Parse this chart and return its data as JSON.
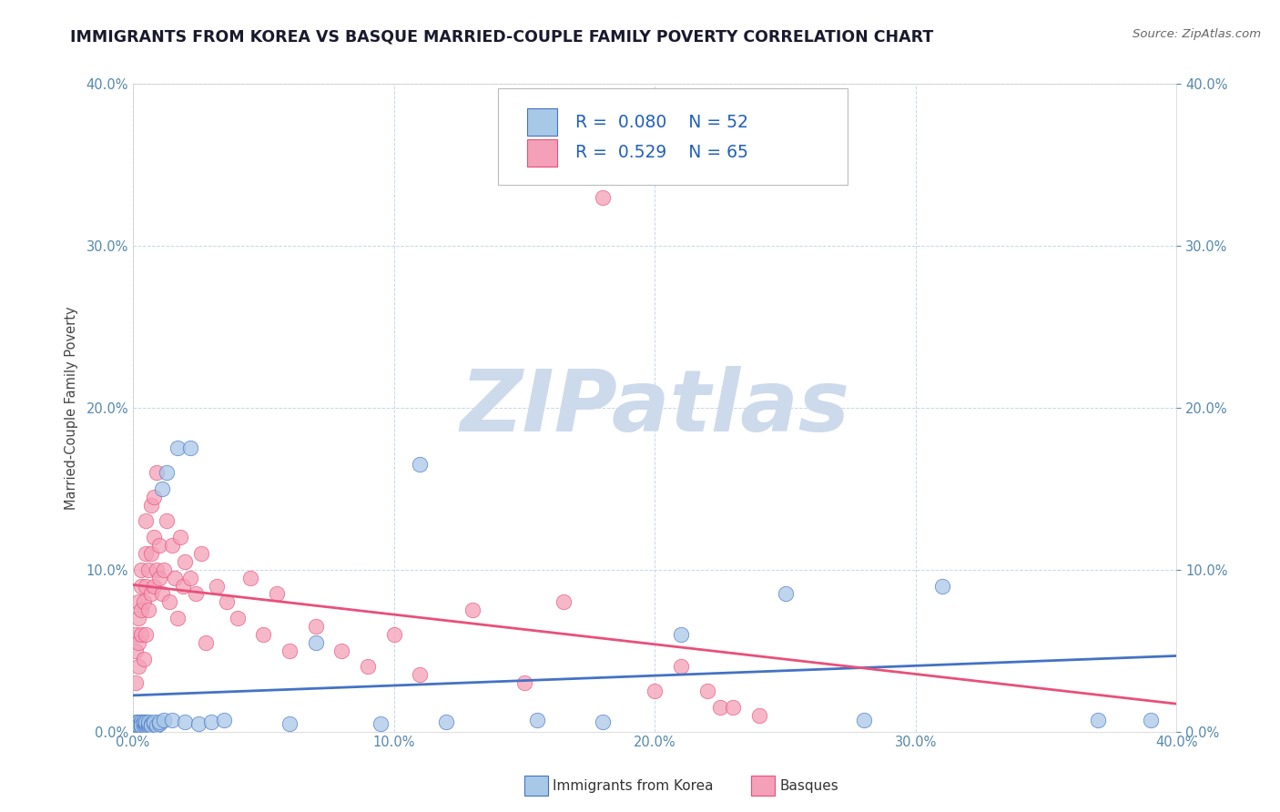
{
  "title": "IMMIGRANTS FROM KOREA VS BASQUE MARRIED-COUPLE FAMILY POVERTY CORRELATION CHART",
  "source": "Source: ZipAtlas.com",
  "ylabel": "Married-Couple Family Poverty",
  "legend_korea": "Immigrants from Korea",
  "legend_basque": "Basques",
  "r_korea": 0.08,
  "n_korea": 52,
  "r_basque": 0.529,
  "n_basque": 65,
  "color_korea": "#a8c8e8",
  "color_korea_line": "#4472c4",
  "color_basque": "#f4a0b8",
  "color_basque_line": "#e8507a",
  "watermark": "ZIPatlas",
  "watermark_color": "#ccdaeb",
  "korea_x": [
    0.001,
    0.001,
    0.001,
    0.001,
    0.002,
    0.002,
    0.002,
    0.002,
    0.002,
    0.003,
    0.003,
    0.003,
    0.003,
    0.004,
    0.004,
    0.004,
    0.005,
    0.005,
    0.005,
    0.006,
    0.006,
    0.006,
    0.007,
    0.007,
    0.008,
    0.008,
    0.009,
    0.01,
    0.01,
    0.011,
    0.012,
    0.013,
    0.015,
    0.017,
    0.02,
    0.022,
    0.025,
    0.03,
    0.035,
    0.06,
    0.07,
    0.095,
    0.11,
    0.12,
    0.155,
    0.18,
    0.21,
    0.25,
    0.28,
    0.31,
    0.37,
    0.39
  ],
  "korea_y": [
    0.004,
    0.005,
    0.003,
    0.006,
    0.004,
    0.005,
    0.003,
    0.006,
    0.004,
    0.005,
    0.003,
    0.006,
    0.004,
    0.005,
    0.004,
    0.006,
    0.004,
    0.005,
    0.006,
    0.004,
    0.005,
    0.006,
    0.005,
    0.004,
    0.005,
    0.006,
    0.004,
    0.005,
    0.006,
    0.15,
    0.007,
    0.16,
    0.007,
    0.175,
    0.006,
    0.175,
    0.005,
    0.006,
    0.007,
    0.005,
    0.055,
    0.005,
    0.165,
    0.006,
    0.007,
    0.006,
    0.06,
    0.085,
    0.007,
    0.09,
    0.007,
    0.007
  ],
  "basque_x": [
    0.001,
    0.001,
    0.001,
    0.002,
    0.002,
    0.002,
    0.002,
    0.003,
    0.003,
    0.003,
    0.003,
    0.004,
    0.004,
    0.005,
    0.005,
    0.005,
    0.005,
    0.006,
    0.006,
    0.007,
    0.007,
    0.007,
    0.008,
    0.008,
    0.008,
    0.009,
    0.009,
    0.01,
    0.01,
    0.011,
    0.012,
    0.013,
    0.014,
    0.015,
    0.016,
    0.017,
    0.018,
    0.019,
    0.02,
    0.022,
    0.024,
    0.026,
    0.028,
    0.032,
    0.036,
    0.04,
    0.045,
    0.05,
    0.055,
    0.06,
    0.07,
    0.08,
    0.09,
    0.1,
    0.11,
    0.13,
    0.15,
    0.165,
    0.18,
    0.2,
    0.21,
    0.22,
    0.225,
    0.23,
    0.24
  ],
  "basque_y": [
    0.03,
    0.05,
    0.06,
    0.04,
    0.055,
    0.07,
    0.08,
    0.06,
    0.075,
    0.09,
    0.1,
    0.045,
    0.08,
    0.06,
    0.09,
    0.11,
    0.13,
    0.075,
    0.1,
    0.085,
    0.11,
    0.14,
    0.09,
    0.12,
    0.145,
    0.1,
    0.16,
    0.095,
    0.115,
    0.085,
    0.1,
    0.13,
    0.08,
    0.115,
    0.095,
    0.07,
    0.12,
    0.09,
    0.105,
    0.095,
    0.085,
    0.11,
    0.055,
    0.09,
    0.08,
    0.07,
    0.095,
    0.06,
    0.085,
    0.05,
    0.065,
    0.05,
    0.04,
    0.06,
    0.035,
    0.075,
    0.03,
    0.08,
    0.33,
    0.025,
    0.04,
    0.025,
    0.015,
    0.015,
    0.01
  ],
  "xlim": [
    0.0,
    0.4
  ],
  "ylim": [
    0.0,
    0.4
  ],
  "figsize": [
    14.06,
    8.92
  ],
  "dpi": 100
}
